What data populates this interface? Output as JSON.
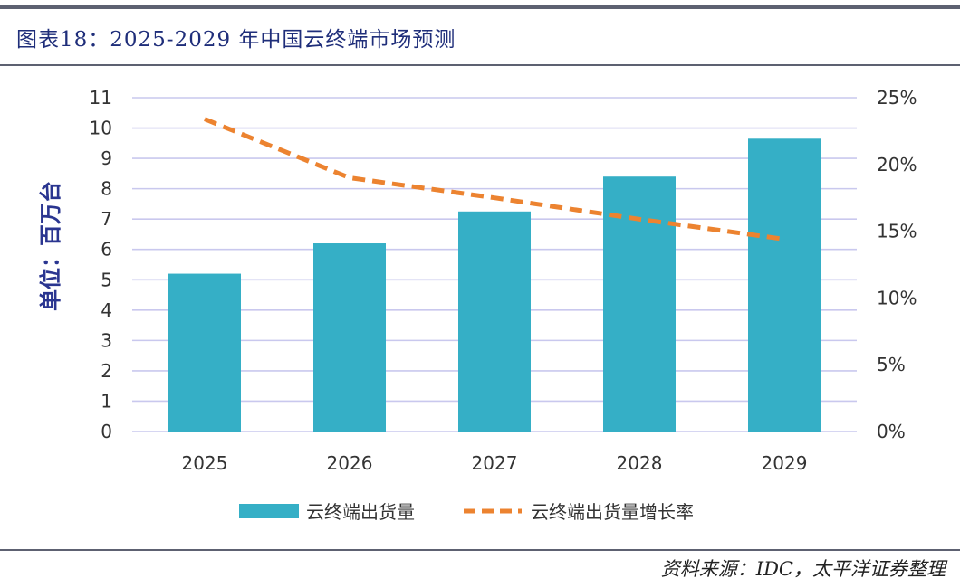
{
  "header": {
    "title": "图表18：2025-2029 年中国云终端市场预测"
  },
  "footer": {
    "source": "资料来源：IDC，太平洋证券整理"
  },
  "colors": {
    "bar": "#35afc6",
    "line": "#ec8330",
    "grid": "#c9c8ee",
    "title": "#1f2e7a",
    "rule": "#5d6171"
  },
  "chart_data": {
    "type": "bar",
    "title": "2025-2029 年中国云终端市场预测",
    "categories": [
      "2025",
      "2026",
      "2027",
      "2028",
      "2029"
    ],
    "series": [
      {
        "name": "云终端出货量",
        "type": "bar",
        "axis": "left",
        "values": [
          5.2,
          6.2,
          7.25,
          8.4,
          9.65
        ]
      },
      {
        "name": "云终端出货量增长率",
        "type": "line",
        "style": "dashed",
        "axis": "right",
        "unit": "%",
        "values": [
          23.4,
          19.0,
          17.5,
          15.9,
          14.4
        ]
      }
    ],
    "ylabel": "单位：百万台",
    "ylim": [
      0,
      11
    ],
    "yticks": [
      "0",
      "1",
      "2",
      "3",
      "4",
      "5",
      "6",
      "7",
      "8",
      "9",
      "10",
      "11"
    ],
    "y2lim": [
      0,
      25
    ],
    "y2ticks": [
      "0%",
      "5%",
      "10%",
      "15%",
      "20%",
      "25%"
    ],
    "grid": true,
    "legend_position": "bottom"
  }
}
